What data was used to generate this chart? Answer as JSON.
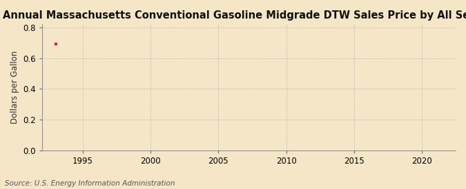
{
  "title": "Annual Massachusetts Conventional Gasoline Midgrade DTW Sales Price by All Sellers",
  "ylabel": "Dollars per Gallon",
  "source_text": "Source: U.S. Energy Information Administration",
  "background_color": "#f5e6c8",
  "plot_background_color": "#f5e6c8",
  "grid_color": "#aaaaaa",
  "data_x": [
    1993
  ],
  "data_y": [
    0.693
  ],
  "marker_color": "#cc2222",
  "xlim": [
    1992.0,
    2022.5
  ],
  "ylim": [
    0.0,
    0.82
  ],
  "xticks": [
    1995,
    2000,
    2005,
    2010,
    2015,
    2020
  ],
  "yticks": [
    0.0,
    0.2,
    0.4,
    0.6,
    0.8
  ],
  "title_fontsize": 10.5,
  "label_fontsize": 8.5,
  "tick_fontsize": 8.5,
  "source_fontsize": 7.5
}
